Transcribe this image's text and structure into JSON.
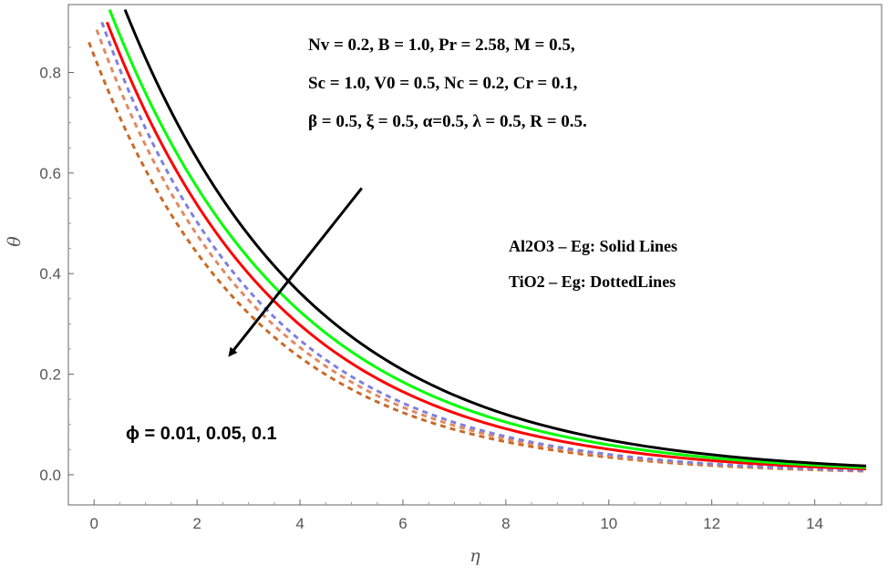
{
  "chart_data": {
    "type": "line",
    "title": "",
    "xlabel": "η",
    "ylabel": "θ",
    "xlim": [
      -0.5,
      15.3
    ],
    "ylim": [
      -0.06,
      0.935
    ],
    "xticks": [
      0,
      2,
      4,
      6,
      8,
      10,
      12,
      14
    ],
    "yticks": [
      0.0,
      0.2,
      0.4,
      0.6,
      0.8
    ],
    "xtick_labels": [
      "0",
      "2",
      "4",
      "6",
      "8",
      "10",
      "12",
      "14"
    ],
    "ytick_labels": [
      "0.0",
      "0.2",
      "0.4",
      "0.6",
      "0.8"
    ],
    "grid": false,
    "series": [
      {
        "name": "Al2O3–Eg φ=0.1",
        "style": "solid",
        "color": "#ff0000",
        "x_start": 0.25,
        "y0": 0.9,
        "decay": 0.295
      },
      {
        "name": "Al2O3–Eg φ=0.05",
        "style": "solid",
        "color": "#00ff00",
        "x_start": 0.3,
        "y0": 0.925,
        "decay": 0.283
      },
      {
        "name": "Al2O3–Eg φ=0.01",
        "style": "solid",
        "color": "#000000",
        "x_start": 0.6,
        "y0": 0.925,
        "decay": 0.276
      },
      {
        "name": "TiO2–Eg φ=0.1",
        "style": "dashed",
        "color": "#c86a28",
        "x_start": -0.1,
        "y0": 0.86,
        "decay": 0.318
      },
      {
        "name": "TiO2–Eg φ=0.05",
        "style": "dashed",
        "color": "#e08a60",
        "x_start": 0.05,
        "y0": 0.885,
        "decay": 0.317
      },
      {
        "name": "TiO2–Eg φ=0.01",
        "style": "dashed",
        "color": "#8080dd",
        "x_start": 0.15,
        "y0": 0.9,
        "decay": 0.315
      }
    ],
    "x_end": 15.0,
    "annotations": {
      "params_line1": "Nv = 0.2, B = 1.0, Pr = 2.58, M = 0.5,",
      "params_line2": "Sc = 1.0, V0 = 0.5, Nc = 0.2, Cr = 0.1,",
      "params_line3": "β = 0.5, ξ = 0.5,  α=0.5, λ = 0.5, R = 0.5.",
      "legend_solid": "Al2O3 – Eg: Solid Lines",
      "legend_dotted": "TiO2 – Eg: DottedLines",
      "phi_label": "ϕ = 0.01,  0.05,  0.1"
    },
    "arrow": {
      "from": [
        5.2,
        0.57
      ],
      "to": [
        2.65,
        0.24
      ]
    }
  }
}
